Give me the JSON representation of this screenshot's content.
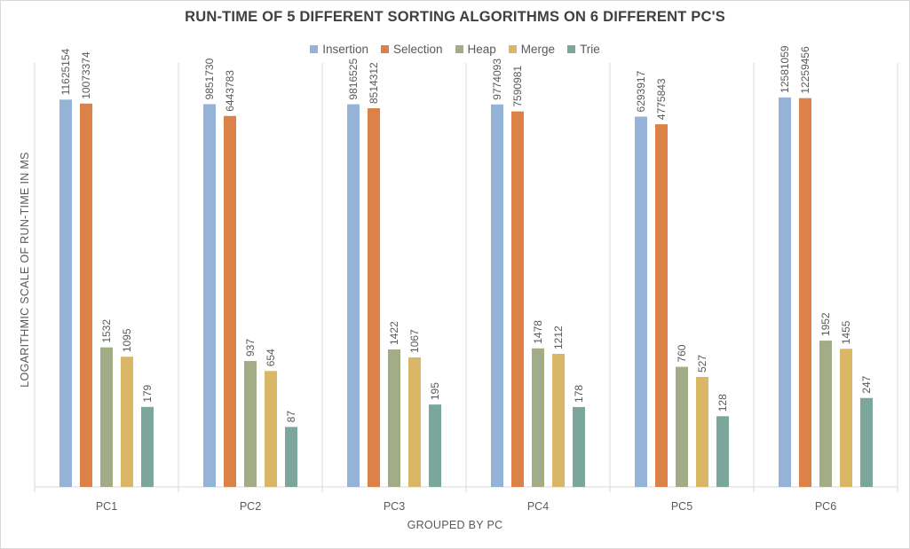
{
  "chart_data": {
    "type": "bar",
    "title": "RUN-TIME OF 5 DIFFERENT SORTING ALGORITHMS ON 6 DIFFERENT PC'S",
    "xlabel": "GROUPED BY PC",
    "ylabel": "LOGARITHMIC SCALE OF RUN-TIME IN MS",
    "yscale": "log",
    "ylim": [
      10,
      100000000
    ],
    "grid": false,
    "legend_position": "top",
    "categories": [
      "PC1",
      "PC2",
      "PC3",
      "PC4",
      "PC5",
      "PC6"
    ],
    "series": [
      {
        "name": "Insertion",
        "color": "#95b3d7",
        "values": [
          11625154,
          9851730,
          9816525,
          9774093,
          6293917,
          12581059
        ]
      },
      {
        "name": "Selection",
        "color": "#dc8148",
        "values": [
          10073374,
          6443783,
          8514312,
          7590981,
          4775843,
          12259456
        ]
      },
      {
        "name": "Heap",
        "color": "#a2ac86",
        "values": [
          1532,
          937,
          1422,
          1478,
          760,
          1952
        ]
      },
      {
        "name": "Merge",
        "color": "#d9b767",
        "values": [
          1095,
          654,
          1067,
          1212,
          527,
          1455
        ]
      },
      {
        "name": "Trie",
        "color": "#7aa69c",
        "values": [
          179,
          87,
          195,
          178,
          128,
          247
        ]
      }
    ]
  }
}
